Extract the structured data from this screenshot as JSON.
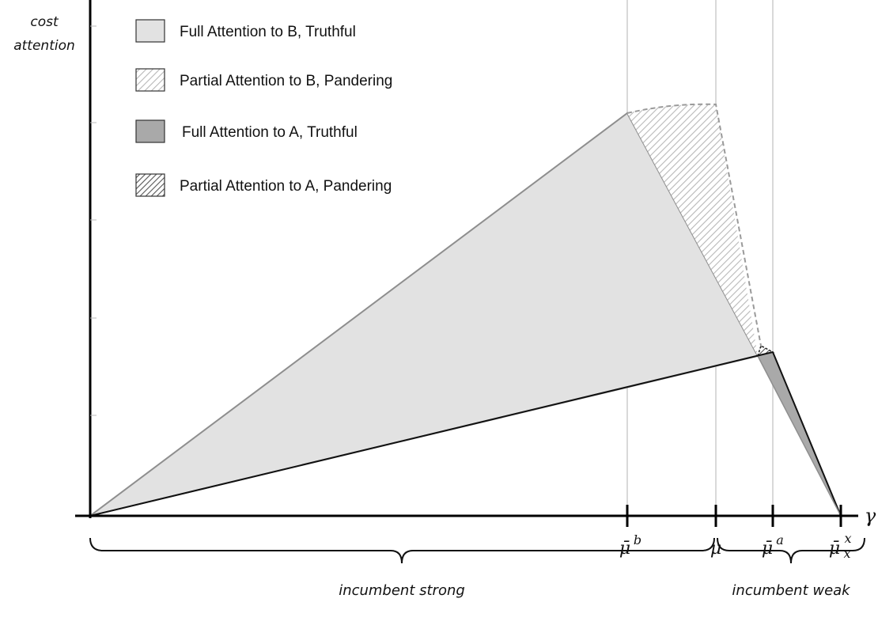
{
  "axes": {
    "y_label_line1": "cost",
    "y_label_line2": "attention",
    "x_label": "γ"
  },
  "x_markers": [
    {
      "id": "mu-bar-b",
      "base": "μ̄",
      "sup": "b",
      "sub": ""
    },
    {
      "id": "mu",
      "base": "μ",
      "sup": "",
      "sub": ""
    },
    {
      "id": "mu-bar-a",
      "base": "μ̄",
      "sup": "a",
      "sub": ""
    },
    {
      "id": "mu-bar-x",
      "base": "μ̄",
      "sup": "x",
      "sub": "x"
    }
  ],
  "legend": [
    {
      "id": "full-b",
      "label": "Full Attention to B, Truthful"
    },
    {
      "id": "partial-b",
      "label": "Partial Attention to B, Pandering"
    },
    {
      "id": "full-a",
      "label": "Full Attention to A, Truthful"
    },
    {
      "id": "partial-a",
      "label": "Partial Attention to A, Pandering"
    }
  ],
  "regions": {
    "strong_label": "incumbent strong",
    "weak_label": "incumbent weak"
  },
  "colors": {
    "full_b_fill": "#e2e2e2",
    "full_a_fill": "#a9a9a9",
    "edge_gray": "#8e8e8e",
    "axis": "#000000"
  }
}
